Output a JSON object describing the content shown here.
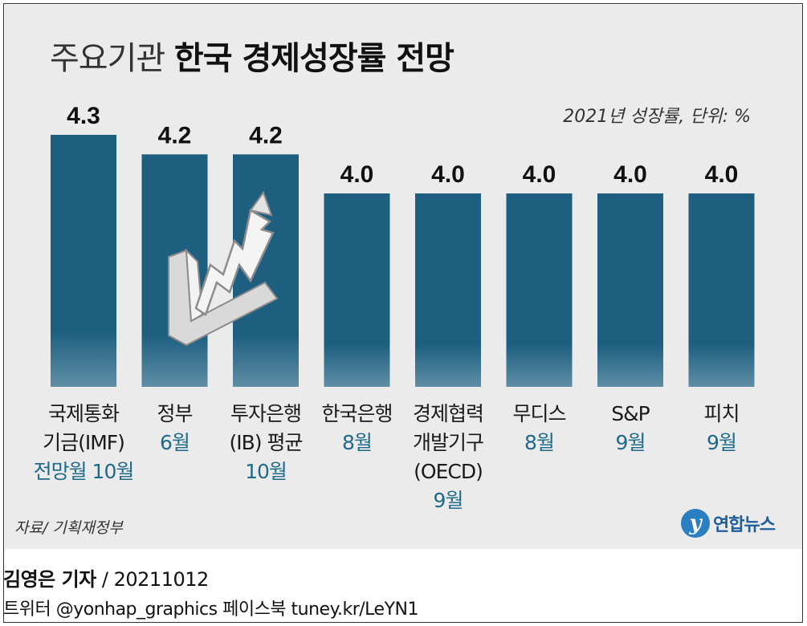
{
  "header": {
    "title_light": "주요기관",
    "title_bold": "한국 경제성장률 전망",
    "unit_note": "2021년 성장률, 단위: %"
  },
  "chart_data": {
    "type": "bar",
    "title": "주요기관 한국 경제성장률 전망",
    "categories": [
      "국제통화\n기금(IMF)",
      "정부",
      "투자은행\n(IB) 평균",
      "한국은행",
      "경제협력\n개발기구\n(OECD)",
      "무디스",
      "S&P",
      "피치"
    ],
    "dates": [
      "전망월 10월",
      "6월",
      "10월",
      "8월",
      "9월",
      "8월",
      "9월",
      "9월"
    ],
    "values": [
      4.3,
      4.2,
      4.2,
      4.0,
      4.0,
      4.0,
      4.0,
      4.0
    ],
    "value_labels": [
      "4.3",
      "4.2",
      "4.2",
      "4.0",
      "4.0",
      "4.0",
      "4.0",
      "4.0"
    ],
    "bar_color": "#1e5f80",
    "grid": false,
    "legend": "none"
  },
  "footer": {
    "source": "자료/ 기획재정부",
    "logo_mark": "y",
    "logo_text": "연합뉴스",
    "reporter": "김영은 기자",
    "date": " / 20211012",
    "social": "트위터 @yonhap_graphics  페이스북 tuney.kr/LeYN1"
  }
}
